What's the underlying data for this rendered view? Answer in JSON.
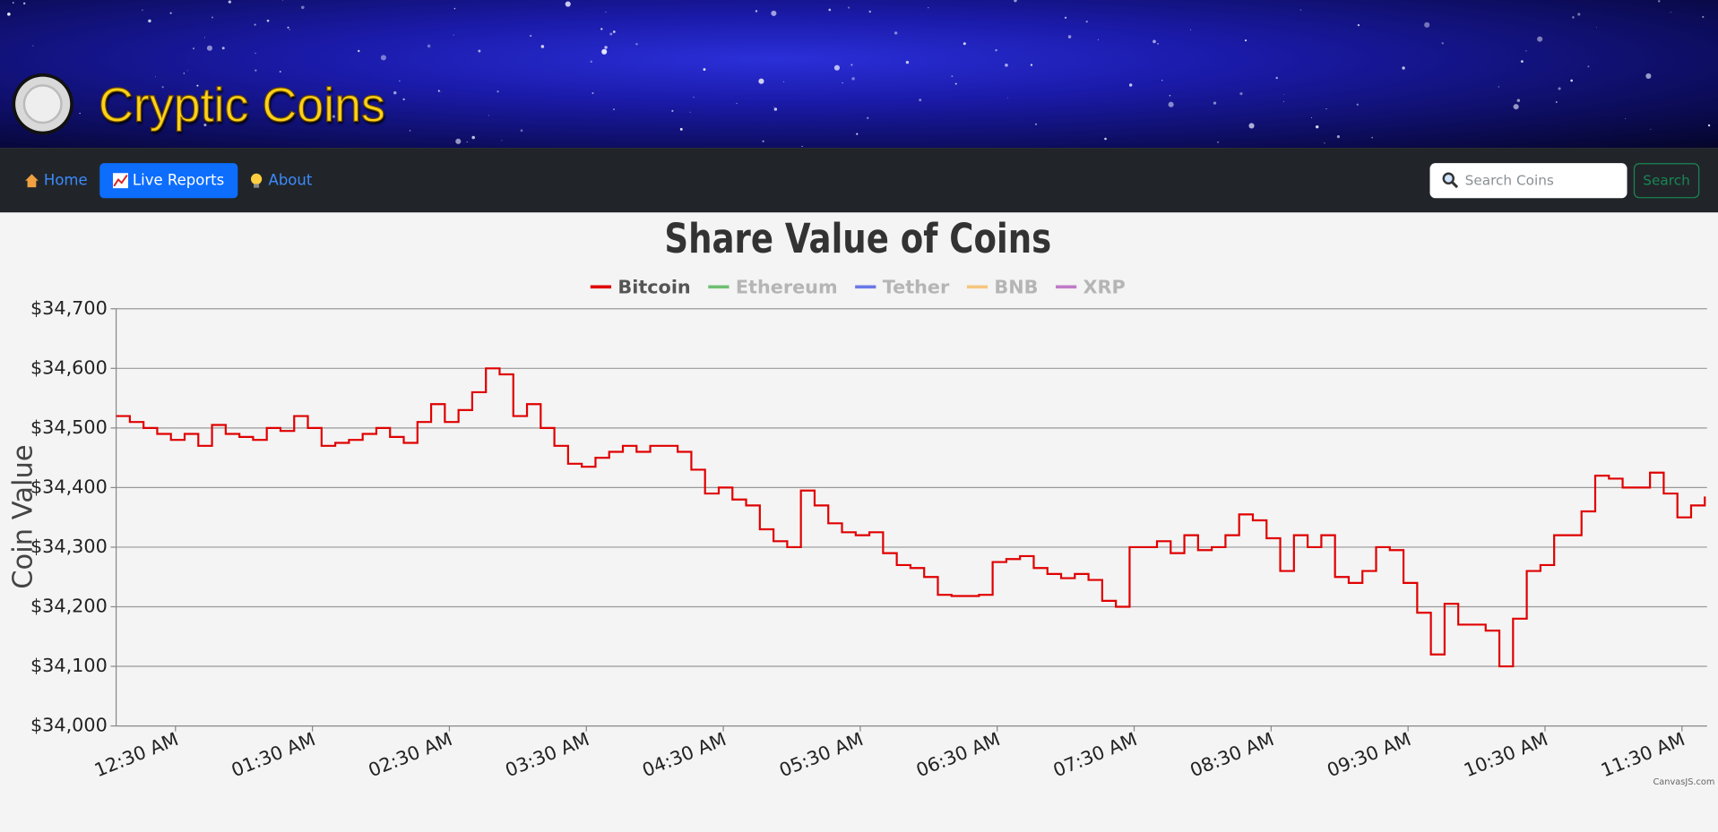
{
  "header": {
    "title": "Cryptic Coins"
  },
  "nav": {
    "links": [
      "Home",
      "Live Reports",
      "About"
    ],
    "active": 1,
    "search_placeholder": "Search Coins",
    "search_button": "Search"
  },
  "chart_data": {
    "type": "line",
    "step": true,
    "title": "Share Value of Coins",
    "y_label": "Coin Value",
    "legend": "top",
    "credit": "CanvasJS.com",
    "grid": true,
    "xlim": [
      4,
      701
    ],
    "xticks": [
      {
        "value": 30,
        "label": "12:30 AM"
      },
      {
        "value": 90,
        "label": "01:30 AM"
      },
      {
        "value": 150,
        "label": "02:30 AM"
      },
      {
        "value": 210,
        "label": "03:30 AM"
      },
      {
        "value": 270,
        "label": "04:30 AM"
      },
      {
        "value": 330,
        "label": "05:30 AM"
      },
      {
        "value": 390,
        "label": "06:30 AM"
      },
      {
        "value": 450,
        "label": "07:30 AM"
      },
      {
        "value": 510,
        "label": "08:30 AM"
      },
      {
        "value": 570,
        "label": "09:30 AM"
      },
      {
        "value": 630,
        "label": "10:30 AM"
      },
      {
        "value": 690,
        "label": "11:30 AM"
      }
    ],
    "ylim": [
      34000,
      34700
    ],
    "yticks": [
      {
        "value": 34000,
        "label": "$34,000"
      },
      {
        "value": 34100,
        "label": "$34,100"
      },
      {
        "value": 34200,
        "label": "$34,200"
      },
      {
        "value": 34300,
        "label": "$34,300"
      },
      {
        "value": 34400,
        "label": "$34,400"
      },
      {
        "value": 34500,
        "label": "$34,500"
      },
      {
        "value": 34600,
        "label": "$34,600"
      },
      {
        "value": 34700,
        "label": "$34,700"
      }
    ],
    "x": [
      4,
      10,
      16,
      22,
      28,
      34,
      40,
      46,
      52,
      58,
      64,
      70,
      76,
      82,
      88,
      94,
      100,
      106,
      112,
      118,
      124,
      130,
      136,
      142,
      148,
      154,
      160,
      166,
      172,
      178,
      184,
      190,
      196,
      202,
      208,
      214,
      220,
      226,
      232,
      238,
      244,
      250,
      256,
      262,
      268,
      274,
      280,
      286,
      292,
      298,
      304,
      310,
      316,
      322,
      328,
      334,
      340,
      346,
      352,
      358,
      364,
      370,
      376,
      382,
      388,
      394,
      400,
      406,
      412,
      418,
      424,
      430,
      436,
      442,
      448,
      454,
      460,
      466,
      472,
      478,
      484,
      490,
      496,
      502,
      508,
      514,
      520,
      526,
      532,
      538,
      544,
      550,
      556,
      562,
      568,
      574,
      580,
      586,
      592,
      598,
      604,
      610,
      616,
      622,
      628,
      634,
      640,
      646,
      652,
      658,
      664,
      670,
      676,
      682,
      688,
      694,
      700
    ],
    "series": [
      {
        "name": "Bitcoin",
        "color": "#e00000",
        "visible": true,
        "values": [
          34520,
          34510,
          34500,
          34490,
          34480,
          34490,
          34470,
          34505,
          34490,
          34485,
          34480,
          34500,
          34495,
          34520,
          34500,
          34470,
          34475,
          34480,
          34490,
          34500,
          34485,
          34475,
          34510,
          34540,
          34510,
          34530,
          34560,
          34600,
          34590,
          34520,
          34540,
          34500,
          34470,
          34440,
          34435,
          34450,
          34460,
          34470,
          34460,
          34470,
          34470,
          34460,
          34430,
          34390,
          34400,
          34380,
          34370,
          34330,
          34310,
          34300,
          34395,
          34370,
          34340,
          34325,
          34320,
          34325,
          34290,
          34270,
          34265,
          34250,
          34220,
          34218,
          34218,
          34220,
          34275,
          34280,
          34285,
          34265,
          34255,
          34248,
          34255,
          34245,
          34210,
          34200,
          34300,
          34300,
          34310,
          34290,
          34320,
          34295,
          34300,
          34320,
          34355,
          34345,
          34315,
          34260,
          34320,
          34300,
          34320,
          34250,
          34240,
          34260,
          34300,
          34295,
          34240,
          34190,
          34120,
          34205,
          34170,
          34170,
          34160,
          34100,
          34180,
          34260,
          34270,
          34320,
          34320,
          34360,
          34420,
          34415,
          34400,
          34400,
          34425,
          34390,
          34350,
          34370,
          34385
        ]
      },
      {
        "name": "Ethereum",
        "color": "#6fbf73",
        "visible": false
      },
      {
        "name": "Tether",
        "color": "#6a78e8",
        "visible": false
      },
      {
        "name": "BNB",
        "color": "#f5c77e",
        "visible": false
      },
      {
        "name": "XRP",
        "color": "#c07bc9",
        "visible": false
      }
    ]
  }
}
